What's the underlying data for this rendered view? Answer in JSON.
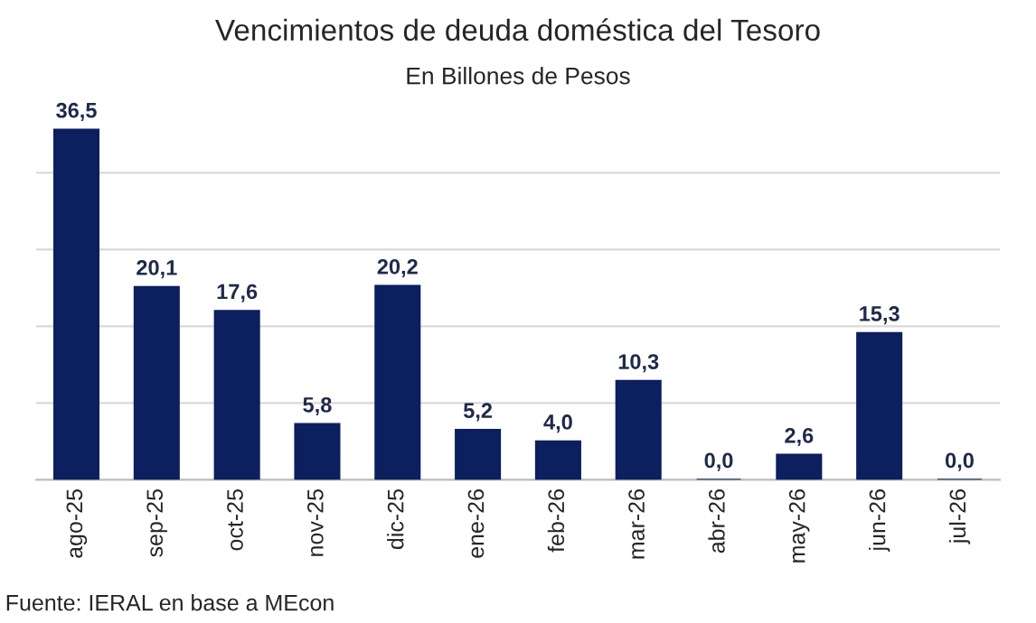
{
  "chart_data": {
    "type": "bar",
    "title": "Vencimientos de deuda doméstica del Tesoro",
    "subtitle": "En Billones de Pesos",
    "categories": [
      "ago-25",
      "sep-25",
      "oct-25",
      "nov-25",
      "dic-25",
      "ene-26",
      "feb-26",
      "mar-26",
      "abr-26",
      "may-26",
      "jun-26",
      "jul-26"
    ],
    "values": [
      36.5,
      20.1,
      17.6,
      5.8,
      20.2,
      5.2,
      4.0,
      10.3,
      0.0,
      2.6,
      15.3,
      0.0
    ],
    "value_labels": [
      "36,5",
      "20,1",
      "17,6",
      "5,8",
      "20,2",
      "5,2",
      "4,0",
      "10,3",
      "0,0",
      "2,6",
      "15,3",
      "0,0"
    ],
    "color": "#0c1f5e",
    "yticks": [
      {
        "value": 0,
        "label": null
      },
      {
        "value": 8,
        "label": null
      },
      {
        "value": 16,
        "label": null
      },
      {
        "value": 24,
        "label": null
      },
      {
        "value": 32,
        "label": null
      }
    ],
    "tick_labels": "x",
    "grid": "y",
    "legend": false,
    "annotations": [
      "Fuente: IERAL en base a MEcon"
    ]
  }
}
